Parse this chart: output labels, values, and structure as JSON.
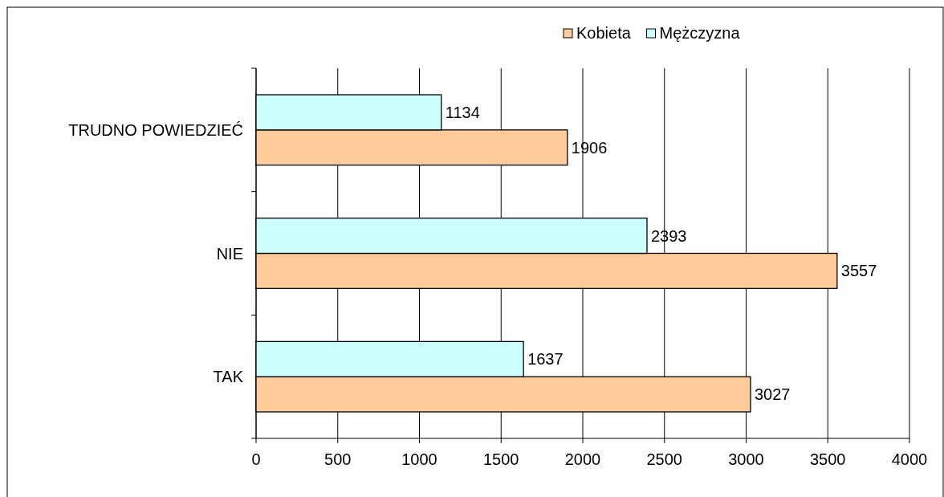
{
  "chart_data": {
    "type": "bar",
    "orientation": "horizontal",
    "categories": [
      "TRUDNO POWIEDZIEĆ",
      "NIE",
      "TAK"
    ],
    "series": [
      {
        "name": "Kobieta",
        "color": "#ffcc99",
        "values": [
          1906,
          3557,
          3027
        ]
      },
      {
        "name": "Mężczyzna",
        "color": "#ccffff",
        "values": [
          1134,
          2393,
          1637
        ]
      }
    ],
    "xlim": [
      0,
      4000
    ],
    "xticks": [
      0,
      500,
      1000,
      1500,
      2000,
      2500,
      3000,
      3500,
      4000
    ],
    "grid": "x",
    "legend": "top",
    "data_labels": true
  }
}
